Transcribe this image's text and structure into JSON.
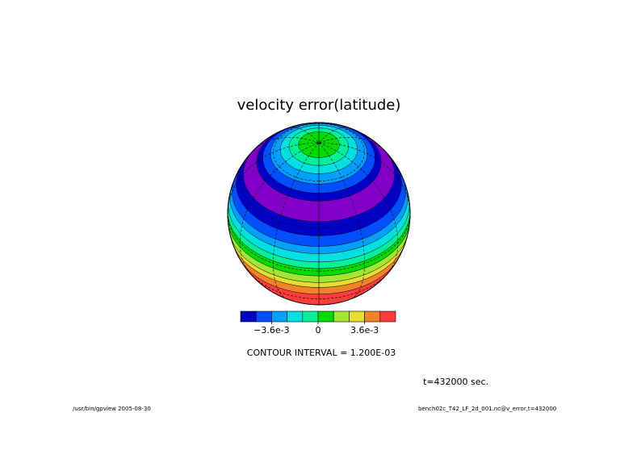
{
  "chart_data": {
    "type": "globe-contour",
    "title": "velocity error(latitude)",
    "colorbar": {
      "colors": [
        "#0000c8",
        "#0050ff",
        "#00a0ff",
        "#00e0e0",
        "#00f09a",
        "#00dc00",
        "#a0e632",
        "#e6dc32",
        "#f08228",
        "#fa3c3c"
      ],
      "lim": [
        -0.006,
        0.006
      ],
      "ticks": [
        {
          "value": -0.0036,
          "label": "−3.6e-3"
        },
        0,
        {
          "value": 0.0036,
          "label": "3.6e-3"
        }
      ]
    },
    "contour_interval_label": "CONTOUR INTERVAL = 1.200E-03",
    "time_label": "t=432000 sec.",
    "footer_left": "/usr/bin/gpview  2005-08-30",
    "footer_right": "bench02c_T42_LF_2d_001.nc@v_error,t=432000"
  }
}
